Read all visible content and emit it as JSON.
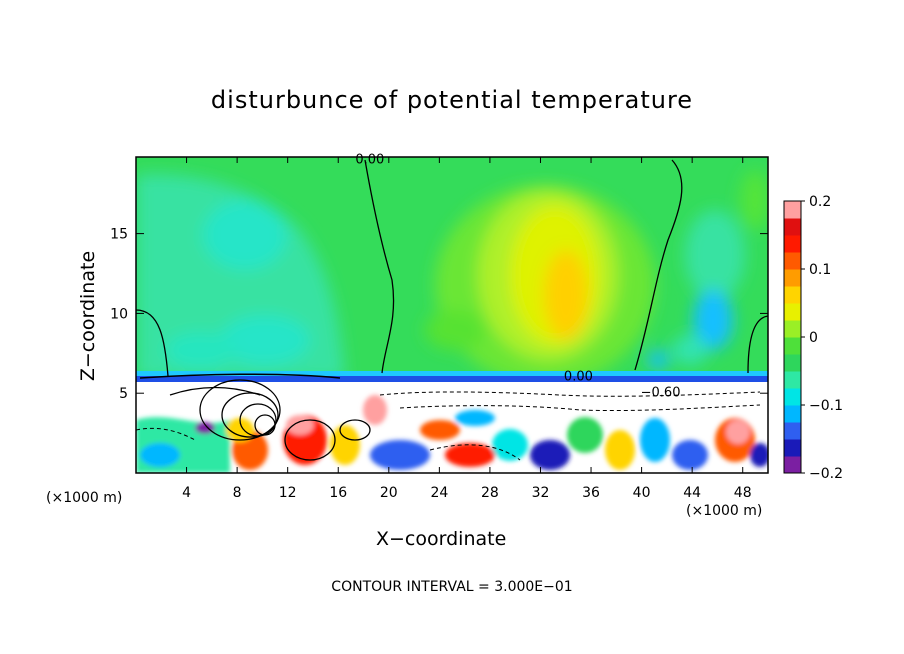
{
  "chart_data": {
    "type": "heatmap",
    "title": "disturbunce of potential temperature",
    "xlabel": "X−coordinate",
    "ylabel": "Z−coordinate",
    "x_unit_left": "(×1000 m)",
    "x_unit_right": "(×1000 m)",
    "footer": "CONTOUR INTERVAL = 3.000E−01",
    "xlim": [
      0,
      50
    ],
    "ylim": [
      0,
      19.8
    ],
    "x_ticks": [
      "4",
      "8",
      "12",
      "16",
      "20",
      "24",
      "28",
      "32",
      "36",
      "40",
      "44",
      "48"
    ],
    "y_ticks": [
      "5",
      "10",
      "15"
    ],
    "colorbar": {
      "range": [
        -0.2,
        0.2
      ],
      "tick_labels": [
        "0.2",
        "0.1",
        "0",
        "−0.1",
        "−0.2"
      ],
      "colors": [
        "#7b1fa2",
        "#1a1ab8",
        "#2f5ff0",
        "#00b7ff",
        "#00e5e5",
        "#2ee8a4",
        "#2ed65c",
        "#4ee03a",
        "#9aef26",
        "#e8f000",
        "#ffd400",
        "#ff9c00",
        "#ff5a00",
        "#ff1a00",
        "#e01010",
        "#ffa0a0"
      ]
    },
    "contour_labels": [
      {
        "text": "0.00",
        "x": 18.5,
        "z": 19.7
      },
      {
        "text": "0.00",
        "x": 35.0,
        "z": 6.1
      },
      {
        "text": "−0.60",
        "x": 41.5,
        "z": 5.1
      }
    ]
  }
}
